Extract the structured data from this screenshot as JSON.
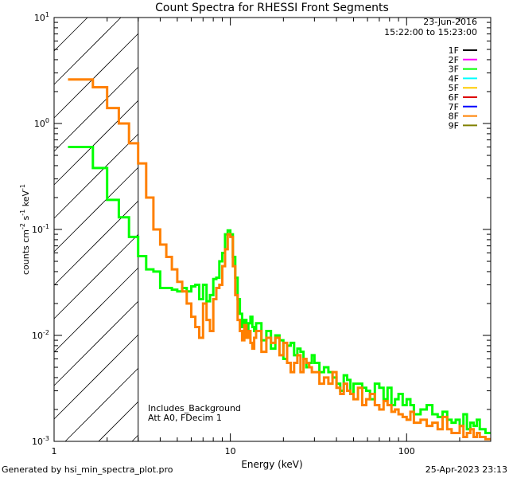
{
  "chart_data": {
    "type": "line",
    "title": "Count Spectra for RHESSI Front Segments",
    "xlabel": "Energy (keV)",
    "ylabel": "counts cm^-2 s^-1 keV^-1",
    "xscale": "log",
    "yscale": "log",
    "xlim": [
      1,
      300
    ],
    "ylim": [
      0.001,
      10
    ],
    "x_ticks": [
      {
        "value": 1,
        "label": "1"
      },
      {
        "value": 10,
        "label": "10"
      },
      {
        "value": 100,
        "label": "100"
      }
    ],
    "y_ticks": [
      {
        "value": 0.001,
        "base": "10",
        "exp": "-3"
      },
      {
        "value": 0.01,
        "base": "10",
        "exp": "-2"
      },
      {
        "value": 0.1,
        "base": "10",
        "exp": "-1"
      },
      {
        "value": 1,
        "base": "10",
        "exp": "0"
      },
      {
        "value": 10,
        "base": "10",
        "exp": "1"
      }
    ],
    "date": "23-Jun-2016",
    "time_range": "15:22:00 to 15:23:00",
    "legend": [
      {
        "name": "1F",
        "color": "#000000"
      },
      {
        "name": "2F",
        "color": "#ff00ff"
      },
      {
        "name": "3F",
        "color": "#00ff00"
      },
      {
        "name": "4F",
        "color": "#00ffff"
      },
      {
        "name": "5F",
        "color": "#ffcc00"
      },
      {
        "name": "6F",
        "color": "#dd0000"
      },
      {
        "name": "7F",
        "color": "#0000ff"
      },
      {
        "name": "8F",
        "color": "#ff8000"
      },
      {
        "name": "9F",
        "color": "#808000"
      }
    ],
    "cutoff_energy": 3,
    "annotations": [
      "Includes_Background",
      "Att A0, FDecim 1"
    ],
    "series": [
      {
        "name": "3F",
        "color": "#00ff00",
        "edges": [
          1.2,
          1.33,
          1.66,
          2.0,
          2.33,
          2.66,
          3.0,
          3.33,
          3.66,
          4.0,
          4.33,
          4.66,
          5.0,
          5.33,
          5.66,
          6.0,
          6.33,
          6.66,
          7.0,
          7.33,
          7.66,
          8.0,
          8.33,
          8.66,
          9.0,
          9.33,
          9.66,
          10.0,
          10.33,
          10.66,
          11.0,
          11.33,
          11.66,
          12.0,
          12.33,
          12.66,
          13.0,
          13.33,
          13.66,
          14.0,
          15.0,
          16.0,
          17.0,
          18.0,
          19.0,
          20.0,
          21.0,
          22.0,
          23.0,
          24.0,
          25.0,
          26.0,
          27.0,
          28.0,
          29.0,
          30.0,
          32.0,
          34.0,
          36.0,
          38.0,
          40.0,
          42.0,
          44.0,
          46.0,
          48.0,
          50.0,
          53.0,
          56.0,
          59.0,
          62.0,
          66.0,
          70.0,
          74.0,
          78.0,
          82.0,
          86.0,
          90.0,
          95.0,
          100.0,
          105.0,
          110.0,
          120.0,
          130.0,
          140.0,
          150.0,
          160.0,
          170.0,
          180.0,
          190.0,
          200.0,
          210.0,
          220.0,
          230.0,
          240.0,
          250.0,
          260.0,
          280.0,
          300.0
        ],
        "values": [
          0.6,
          0.6,
          0.38,
          0.19,
          0.13,
          0.085,
          0.056,
          0.042,
          0.04,
          0.028,
          0.028,
          0.027,
          0.026,
          0.028,
          0.026,
          0.029,
          0.03,
          0.022,
          0.03,
          0.021,
          0.024,
          0.034,
          0.035,
          0.05,
          0.06,
          0.09,
          0.098,
          0.09,
          0.055,
          0.035,
          0.022,
          0.016,
          0.012,
          0.014,
          0.011,
          0.013,
          0.015,
          0.012,
          0.011,
          0.013,
          0.009,
          0.011,
          0.0075,
          0.01,
          0.009,
          0.006,
          0.008,
          0.0085,
          0.0065,
          0.0075,
          0.007,
          0.006,
          0.005,
          0.0055,
          0.0065,
          0.0055,
          0.0045,
          0.005,
          0.0045,
          0.004,
          0.0035,
          0.003,
          0.0042,
          0.0038,
          0.0028,
          0.0035,
          0.0035,
          0.0032,
          0.003,
          0.0025,
          0.0035,
          0.0032,
          0.0025,
          0.0032,
          0.0022,
          0.0025,
          0.0028,
          0.0022,
          0.0025,
          0.0022,
          0.0018,
          0.002,
          0.0022,
          0.0018,
          0.0017,
          0.0019,
          0.0016,
          0.0015,
          0.0016,
          0.0014,
          0.0018,
          0.0013,
          0.0015,
          0.0014,
          0.0016,
          0.0013,
          0.0012
        ]
      },
      {
        "name": "8F",
        "color": "#ff8000",
        "edges": [
          1.2,
          1.33,
          1.66,
          2.0,
          2.33,
          2.66,
          3.0,
          3.33,
          3.66,
          4.0,
          4.33,
          4.66,
          5.0,
          5.33,
          5.66,
          6.0,
          6.33,
          6.66,
          7.0,
          7.33,
          7.66,
          8.0,
          8.33,
          8.66,
          9.0,
          9.33,
          9.66,
          10.0,
          10.33,
          10.66,
          11.0,
          11.33,
          11.66,
          12.0,
          12.33,
          12.66,
          13.0,
          13.33,
          13.66,
          14.0,
          15.0,
          16.0,
          17.0,
          18.0,
          19.0,
          20.0,
          21.0,
          22.0,
          23.0,
          24.0,
          25.0,
          26.0,
          27.0,
          28.0,
          29.0,
          30.0,
          32.0,
          34.0,
          36.0,
          38.0,
          40.0,
          42.0,
          44.0,
          46.0,
          48.0,
          50.0,
          53.0,
          56.0,
          59.0,
          62.0,
          66.0,
          70.0,
          74.0,
          78.0,
          82.0,
          86.0,
          90.0,
          95.0,
          100.0,
          105.0,
          110.0,
          120.0,
          130.0,
          140.0,
          150.0,
          160.0,
          170.0,
          180.0,
          190.0,
          200.0,
          210.0,
          220.0,
          230.0,
          240.0,
          250.0,
          260.0,
          280.0,
          300.0
        ],
        "values": [
          2.6,
          2.6,
          2.2,
          1.4,
          1.0,
          0.65,
          0.42,
          0.2,
          0.1,
          0.072,
          0.055,
          0.042,
          0.032,
          0.026,
          0.02,
          0.015,
          0.012,
          0.0095,
          0.02,
          0.014,
          0.011,
          0.022,
          0.028,
          0.03,
          0.045,
          0.065,
          0.09,
          0.085,
          0.045,
          0.024,
          0.014,
          0.011,
          0.009,
          0.0125,
          0.0095,
          0.011,
          0.0085,
          0.0075,
          0.0095,
          0.011,
          0.007,
          0.0095,
          0.0085,
          0.0095,
          0.0065,
          0.0085,
          0.0055,
          0.0045,
          0.0055,
          0.0065,
          0.0045,
          0.006,
          0.0055,
          0.005,
          0.0045,
          0.0045,
          0.0035,
          0.004,
          0.0035,
          0.0045,
          0.0032,
          0.0028,
          0.0035,
          0.003,
          0.0028,
          0.0025,
          0.0032,
          0.0022,
          0.0025,
          0.0028,
          0.0022,
          0.002,
          0.0024,
          0.0022,
          0.0019,
          0.002,
          0.0018,
          0.0017,
          0.0016,
          0.0019,
          0.0015,
          0.0016,
          0.0014,
          0.0015,
          0.0013,
          0.0017,
          0.0013,
          0.0012,
          0.0012,
          0.0014,
          0.0011,
          0.0012,
          0.0013,
          0.0011,
          0.0012,
          0.0011,
          0.00105
        ]
      }
    ]
  },
  "footer": {
    "left": "Generated by hsi_min_spectra_plot.pro",
    "right": "25-Apr-2023 23:13"
  }
}
